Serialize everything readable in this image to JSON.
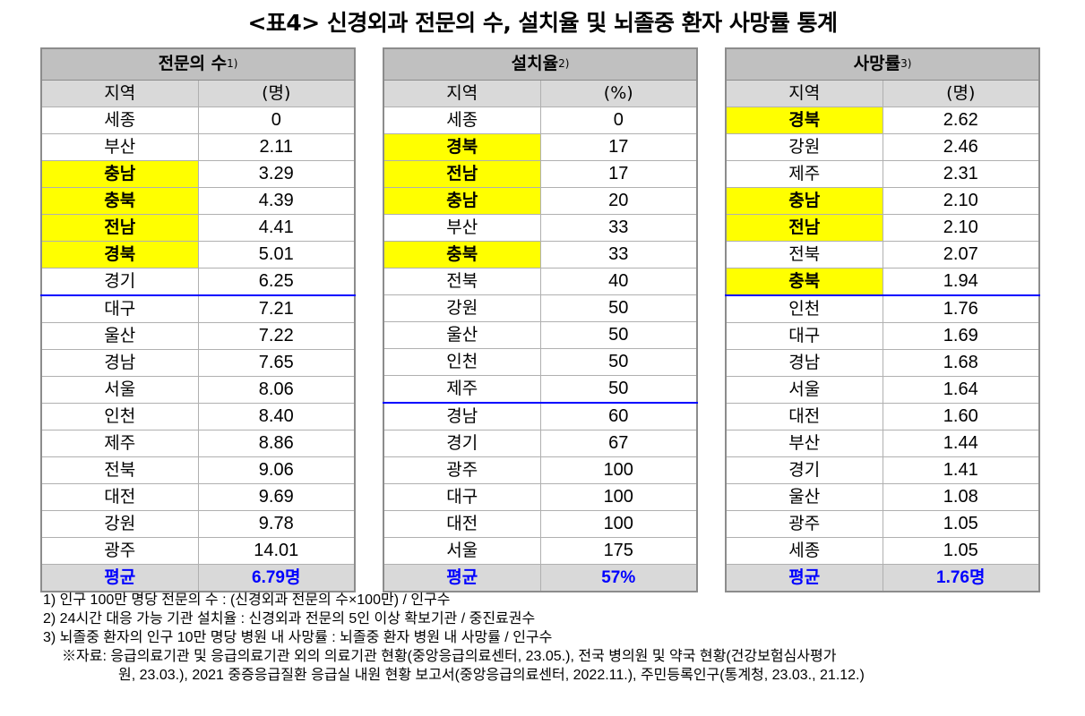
{
  "title": "<표4> 신경외과 전문의 수, 설치율 및 뇌졸중 환자 사망률 통계",
  "tables": [
    {
      "header": "전문의 수",
      "note_ref": "1)",
      "col_region": "지역",
      "col_unit": "(명)",
      "divider_after": 6,
      "rows": [
        {
          "region": "세종",
          "value": "0",
          "highlight": false
        },
        {
          "region": "부산",
          "value": "2.11",
          "highlight": false
        },
        {
          "region": "충남",
          "value": "3.29",
          "highlight": true
        },
        {
          "region": "충북",
          "value": "4.39",
          "highlight": true
        },
        {
          "region": "전남",
          "value": "4.41",
          "highlight": true
        },
        {
          "region": "경북",
          "value": "5.01",
          "highlight": true
        },
        {
          "region": "경기",
          "value": "6.25",
          "highlight": false
        },
        {
          "region": "대구",
          "value": "7.21",
          "highlight": false
        },
        {
          "region": "울산",
          "value": "7.22",
          "highlight": false
        },
        {
          "region": "경남",
          "value": "7.65",
          "highlight": false
        },
        {
          "region": "서울",
          "value": "8.06",
          "highlight": false
        },
        {
          "region": "인천",
          "value": "8.40",
          "highlight": false
        },
        {
          "region": "제주",
          "value": "8.86",
          "highlight": false
        },
        {
          "region": "전북",
          "value": "9.06",
          "highlight": false
        },
        {
          "region": "대전",
          "value": "9.69",
          "highlight": false
        },
        {
          "region": "강원",
          "value": "9.78",
          "highlight": false
        },
        {
          "region": "광주",
          "value": "14.01",
          "highlight": false
        }
      ],
      "avg_label": "평균",
      "avg_value": "6.79명"
    },
    {
      "header": "설치율",
      "note_ref": "2)",
      "col_region": "지역",
      "col_unit": "(%)",
      "divider_after": 10,
      "rows": [
        {
          "region": "세종",
          "value": "0",
          "highlight": false
        },
        {
          "region": "경북",
          "value": "17",
          "highlight": true
        },
        {
          "region": "전남",
          "value": "17",
          "highlight": true
        },
        {
          "region": "충남",
          "value": "20",
          "highlight": true
        },
        {
          "region": "부산",
          "value": "33",
          "highlight": false
        },
        {
          "region": "충북",
          "value": "33",
          "highlight": true
        },
        {
          "region": "전북",
          "value": "40",
          "highlight": false
        },
        {
          "region": "강원",
          "value": "50",
          "highlight": false
        },
        {
          "region": "울산",
          "value": "50",
          "highlight": false
        },
        {
          "region": "인천",
          "value": "50",
          "highlight": false
        },
        {
          "region": "제주",
          "value": "50",
          "highlight": false
        },
        {
          "region": "경남",
          "value": "60",
          "highlight": false
        },
        {
          "region": "경기",
          "value": "67",
          "highlight": false
        },
        {
          "region": "광주",
          "value": "100",
          "highlight": false
        },
        {
          "region": "대구",
          "value": "100",
          "highlight": false
        },
        {
          "region": "대전",
          "value": "100",
          "highlight": false
        },
        {
          "region": "서울",
          "value": "175",
          "highlight": false
        }
      ],
      "avg_label": "평균",
      "avg_value": "57%"
    },
    {
      "header": "사망률",
      "note_ref": "3)",
      "col_region": "지역",
      "col_unit": "(명)",
      "divider_after": 6,
      "rows": [
        {
          "region": "경북",
          "value": "2.62",
          "highlight": true
        },
        {
          "region": "강원",
          "value": "2.46",
          "highlight": false
        },
        {
          "region": "제주",
          "value": "2.31",
          "highlight": false
        },
        {
          "region": "충남",
          "value": "2.10",
          "highlight": true
        },
        {
          "region": "전남",
          "value": "2.10",
          "highlight": true
        },
        {
          "region": "전북",
          "value": "2.07",
          "highlight": false
        },
        {
          "region": "충북",
          "value": "1.94",
          "highlight": true
        },
        {
          "region": "인천",
          "value": "1.76",
          "highlight": false
        },
        {
          "region": "대구",
          "value": "1.69",
          "highlight": false
        },
        {
          "region": "경남",
          "value": "1.68",
          "highlight": false
        },
        {
          "region": "서울",
          "value": "1.64",
          "highlight": false
        },
        {
          "region": "대전",
          "value": "1.60",
          "highlight": false
        },
        {
          "region": "부산",
          "value": "1.44",
          "highlight": false
        },
        {
          "region": "경기",
          "value": "1.41",
          "highlight": false
        },
        {
          "region": "울산",
          "value": "1.08",
          "highlight": false
        },
        {
          "region": "광주",
          "value": "1.05",
          "highlight": false
        },
        {
          "region": "세종",
          "value": "1.05",
          "highlight": false
        }
      ],
      "avg_label": "평균",
      "avg_value": "1.76명"
    }
  ],
  "footnotes": [
    "1) 인구 100만 명당 전문의 수 : (신경외과 전문의 수×100만) / 인구수",
    "2) 24시간 대응 가능 기관 설치율 : 신경외과 전문의 5인 이상 확보기관 / 중진료권수",
    "3) 뇌졸중 환자의 인구 10만 명당 병원 내 사망률 : 뇌졸중 환자 병원 내 사망률 / 인구수"
  ],
  "source_line1": "※자료: 응급의료기관 및 응급의료기관 외의 의료기관 현황(중앙응급의료센터, 23.05.), 전국 병의원 및 약국 현황(건강보험심사평가",
  "source_line2": "원, 23.03.), 2021 중증응급질환 응급실 내원 현황 보고서(중앙응급의료센터, 2022.11.), 주민등록인구(통계청, 23.03., 21.12.)",
  "colors": {
    "header_bg": "#c0c0c0",
    "subheader_bg": "#d9d9d9",
    "highlight": "#ffff00",
    "avg_text": "#0000ff",
    "divider": "#0000ff"
  }
}
